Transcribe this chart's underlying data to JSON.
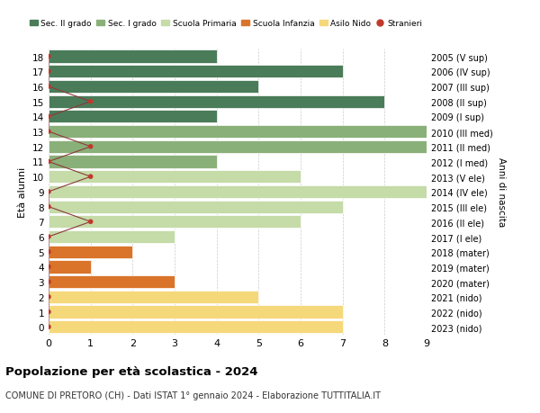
{
  "ages": [
    18,
    17,
    16,
    15,
    14,
    13,
    12,
    11,
    10,
    9,
    8,
    7,
    6,
    5,
    4,
    3,
    2,
    1,
    0
  ],
  "years": [
    "2005 (V sup)",
    "2006 (IV sup)",
    "2007 (III sup)",
    "2008 (II sup)",
    "2009 (I sup)",
    "2010 (III med)",
    "2011 (II med)",
    "2012 (I med)",
    "2013 (V ele)",
    "2014 (IV ele)",
    "2015 (III ele)",
    "2016 (II ele)",
    "2017 (I ele)",
    "2018 (mater)",
    "2019 (mater)",
    "2020 (mater)",
    "2021 (nido)",
    "2022 (nido)",
    "2023 (nido)"
  ],
  "bar_values": [
    4,
    7,
    5,
    8,
    4,
    9,
    9,
    4,
    6,
    9,
    7,
    6,
    3,
    2,
    1,
    3,
    5,
    7,
    7
  ],
  "bar_colors": [
    "#4a7c59",
    "#4a7c59",
    "#4a7c59",
    "#4a7c59",
    "#4a7c59",
    "#8ab07a",
    "#8ab07a",
    "#8ab07a",
    "#c5dba8",
    "#c5dba8",
    "#c5dba8",
    "#c5dba8",
    "#c5dba8",
    "#d9742a",
    "#d9742a",
    "#d9742a",
    "#f5d87a",
    "#f5d87a",
    "#f5d87a"
  ],
  "stranieri_values": [
    0,
    0,
    0,
    1,
    0,
    0,
    1,
    0,
    1,
    0,
    0,
    1,
    0,
    0,
    0,
    0,
    0,
    0,
    0
  ],
  "stranieri_ages": [
    18,
    17,
    16,
    15,
    14,
    13,
    12,
    11,
    10,
    9,
    8,
    7,
    6,
    5,
    4,
    3,
    2,
    1,
    0
  ],
  "legend_labels": [
    "Sec. II grado",
    "Sec. I grado",
    "Scuola Primaria",
    "Scuola Infanzia",
    "Asilo Nido",
    "Stranieri"
  ],
  "legend_colors": [
    "#4a7c59",
    "#8ab07a",
    "#c5dba8",
    "#d9742a",
    "#f5d87a",
    "#c0392b"
  ],
  "title": "Popolazione per età scolastica - 2024",
  "subtitle": "COMUNE DI PRETORO (CH) - Dati ISTAT 1° gennaio 2024 - Elaborazione TUTTITALIA.IT",
  "ylabel": "Età alunni",
  "right_ylabel": "Anni di nascita",
  "xlim": [
    0,
    9
  ],
  "xticks": [
    0,
    1,
    2,
    3,
    4,
    5,
    6,
    7,
    8,
    9
  ],
  "bar_height": 0.85,
  "bg_color": "#ffffff",
  "grid_color": "#cccccc",
  "stranieri_color": "#c0392b",
  "stranieri_line_color": "#8b3a3a"
}
